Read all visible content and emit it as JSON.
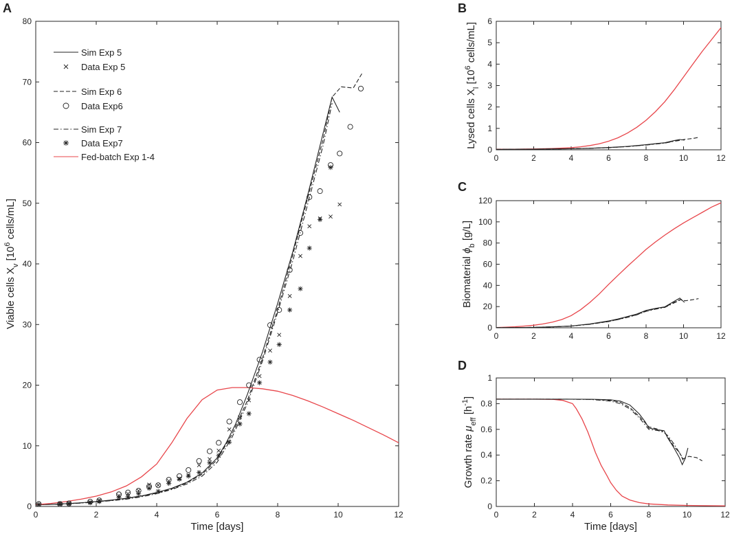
{
  "colors": {
    "black": "#222222",
    "red": "#e8454a",
    "frame": "#262626"
  },
  "chart_data": [
    {
      "panel": "A",
      "type": "line",
      "xlabel": "Time [days]",
      "ylabel_parts": [
        "Viable cells X",
        "v",
        " [10",
        "6",
        " cells/mL]"
      ],
      "xlim": [
        0,
        12
      ],
      "ylim": [
        0,
        80
      ],
      "xticks": [
        0,
        2,
        4,
        6,
        8,
        10,
        12
      ],
      "yticks": [
        0,
        10,
        20,
        30,
        40,
        50,
        60,
        70,
        80
      ],
      "legend": [
        "Sim Exp 5",
        "Data Exp 5",
        "Sim Exp 6",
        "Data Exp6",
        "Sim Exp 7",
        "Data Exp7",
        "Fed-batch Exp 1-4"
      ],
      "series": [
        {
          "name": "Sim Exp 5",
          "style": "solid",
          "color": "#222222",
          "x": [
            0,
            0.5,
            1,
            1.5,
            2,
            2.5,
            3,
            3.5,
            4,
            4.5,
            5,
            5.5,
            6,
            6.3,
            6.6,
            7,
            7.5,
            8,
            8.5,
            9,
            9.5,
            9.8,
            10.05
          ],
          "y": [
            0.3,
            0.35,
            0.45,
            0.6,
            0.8,
            1.05,
            1.35,
            1.75,
            2.3,
            3.0,
            4.0,
            5.5,
            8.0,
            10.5,
            13.5,
            18.5,
            25.5,
            33.5,
            42,
            51.5,
            61.5,
            67.5,
            65
          ]
        },
        {
          "name": "Sim Exp 6",
          "style": "dashed",
          "color": "#222222",
          "x": [
            0,
            0.5,
            1,
            1.5,
            2,
            2.5,
            3,
            3.5,
            4,
            4.5,
            5,
            5.5,
            6,
            6.5,
            7,
            7.5,
            8,
            8.5,
            9,
            9.5,
            9.8,
            10.1,
            10.5,
            10.8
          ],
          "y": [
            0.3,
            0.35,
            0.45,
            0.6,
            0.8,
            1.0,
            1.3,
            1.7,
            2.2,
            2.9,
            3.9,
            5.3,
            7.7,
            12,
            17.5,
            24.5,
            32.5,
            41.5,
            51,
            60.5,
            67.5,
            69.2,
            69.0,
            71.5
          ]
        },
        {
          "name": "Sim Exp 7",
          "style": "dashdot",
          "color": "#222222",
          "x": [
            0,
            0.5,
            1,
            1.5,
            2,
            2.5,
            3,
            3.5,
            4,
            4.5,
            5,
            5.5,
            6,
            6.5,
            7,
            7.5,
            8,
            8.5,
            9,
            9.5,
            9.8
          ],
          "y": [
            0.3,
            0.33,
            0.42,
            0.55,
            0.72,
            0.95,
            1.2,
            1.6,
            2.1,
            2.8,
            3.7,
            5.0,
            7.3,
            11.5,
            17,
            24,
            32,
            40.5,
            50,
            59.5,
            66.5
          ]
        },
        {
          "name": "Fed-batch Exp 1-4",
          "style": "solid",
          "color": "#e8454a",
          "x": [
            0,
            0.5,
            1,
            1.5,
            2,
            2.5,
            3,
            3.5,
            4,
            4.5,
            5,
            5.5,
            6,
            6.5,
            7,
            7.5,
            8,
            8.5,
            9,
            9.5,
            10,
            10.5,
            11,
            11.5,
            12
          ],
          "y": [
            0.3,
            0.5,
            0.8,
            1.2,
            1.7,
            2.4,
            3.4,
            4.9,
            7.0,
            10.5,
            14.5,
            17.6,
            19.2,
            19.6,
            19.6,
            19.4,
            19.0,
            18.3,
            17.4,
            16.4,
            15.3,
            14.2,
            13.0,
            11.8,
            10.5
          ]
        }
      ],
      "points": [
        {
          "name": "Data Exp 5",
          "marker": "x",
          "x": [
            0.1,
            0.8,
            1.1,
            1.8,
            2.1,
            2.75,
            3.05,
            3.4,
            3.75,
            4.05,
            4.4,
            4.75,
            5.05,
            5.4,
            5.75,
            6.05,
            6.4,
            6.75,
            7.05,
            7.4,
            7.75,
            8.05,
            8.4,
            8.75,
            9.05,
            9.4,
            9.75,
            10.05
          ],
          "y": [
            0.3,
            0.5,
            0.5,
            0.7,
            1.0,
            1.8,
            2.1,
            2.6,
            3.6,
            3.5,
            4.2,
            4.6,
            5.2,
            6.8,
            7.8,
            9.2,
            12.7,
            14.7,
            17.5,
            21.5,
            25.7,
            28.3,
            34.7,
            41.3,
            46.2,
            47.5,
            47.8,
            49.8
          ]
        },
        {
          "name": "Data Exp6",
          "marker": "circle",
          "x": [
            0.1,
            0.8,
            1.1,
            1.8,
            2.1,
            2.75,
            3.05,
            3.4,
            3.75,
            4.05,
            4.4,
            4.75,
            5.05,
            5.4,
            5.75,
            6.05,
            6.4,
            6.75,
            7.05,
            7.4,
            7.75,
            8.05,
            8.4,
            8.75,
            9.05,
            9.4,
            9.75,
            10.05,
            10.4,
            10.75
          ],
          "y": [
            0.4,
            0.4,
            0.5,
            0.8,
            1.0,
            2.0,
            2.3,
            2.6,
            3.3,
            3.5,
            4.4,
            5.0,
            6.0,
            7.5,
            9.1,
            10.5,
            14.0,
            17.2,
            20.0,
            24.2,
            29.9,
            32.4,
            39.0,
            45.1,
            51.0,
            52.0,
            56.3,
            58.2,
            62.6,
            68.9
          ]
        },
        {
          "name": "Data Exp7",
          "marker": "star",
          "x": [
            0.1,
            0.8,
            1.1,
            1.8,
            2.1,
            2.75,
            3.05,
            3.4,
            3.75,
            4.05,
            4.4,
            4.75,
            5.05,
            5.4,
            5.75,
            6.05,
            6.4,
            6.75,
            7.05,
            7.4,
            7.75,
            8.05,
            8.4,
            8.75,
            9.05,
            9.4,
            9.75
          ],
          "y": [
            0.3,
            0.3,
            0.4,
            0.6,
            0.8,
            1.5,
            1.6,
            2.1,
            3.0,
            2.5,
            3.8,
            4.5,
            5.0,
            5.6,
            7.2,
            8.4,
            10.6,
            13.6,
            15.3,
            20.4,
            23.8,
            26.7,
            32.4,
            35.9,
            42.6,
            47.3,
            55.9
          ]
        }
      ]
    },
    {
      "panel": "B",
      "type": "line",
      "xlabel": "",
      "ylabel_parts": [
        "Lysed cells X",
        "l",
        " [10",
        "6",
        " cells/mL]"
      ],
      "xlim": [
        0,
        12
      ],
      "ylim": [
        0,
        6
      ],
      "xticks": [
        0,
        2,
        4,
        6,
        8,
        10,
        12
      ],
      "yticks": [
        0,
        1,
        2,
        3,
        4,
        5,
        6
      ],
      "series": [
        {
          "name": "Fed-batch",
          "style": "solid",
          "color": "#e8454a",
          "x": [
            0,
            1,
            2,
            3,
            4,
            4.5,
            5,
            5.5,
            6,
            6.5,
            7,
            7.5,
            8,
            8.5,
            9,
            9.5,
            10,
            10.5,
            11,
            11.5,
            12
          ],
          "y": [
            0.03,
            0.03,
            0.04,
            0.06,
            0.1,
            0.14,
            0.2,
            0.28,
            0.4,
            0.56,
            0.78,
            1.05,
            1.38,
            1.78,
            2.25,
            2.8,
            3.4,
            4.0,
            4.6,
            5.15,
            5.7
          ]
        },
        {
          "name": "Sim Exp 5",
          "style": "solid",
          "color": "#222222",
          "x": [
            0,
            2,
            4,
            5,
            6,
            7,
            8,
            8.5,
            9,
            9.5,
            9.8,
            10.05
          ],
          "y": [
            0.02,
            0.03,
            0.05,
            0.07,
            0.11,
            0.16,
            0.24,
            0.29,
            0.33,
            0.43,
            0.48,
            0.45
          ]
        },
        {
          "name": "Sim Exp 6",
          "style": "dashed",
          "color": "#222222",
          "x": [
            0,
            2,
            4,
            5,
            6,
            7,
            8,
            8.5,
            9,
            9.5,
            9.8,
            10.1,
            10.5,
            10.8
          ],
          "y": [
            0.02,
            0.03,
            0.05,
            0.07,
            0.1,
            0.15,
            0.23,
            0.28,
            0.32,
            0.41,
            0.45,
            0.49,
            0.53,
            0.58
          ]
        },
        {
          "name": "Sim Exp 7",
          "style": "dashdot",
          "color": "#222222",
          "x": [
            0,
            2,
            4,
            5,
            6,
            7,
            8,
            8.5,
            9,
            9.5,
            9.8
          ],
          "y": [
            0.02,
            0.03,
            0.05,
            0.07,
            0.1,
            0.15,
            0.22,
            0.27,
            0.31,
            0.4,
            0.44
          ]
        }
      ]
    },
    {
      "panel": "C",
      "type": "line",
      "xlabel": "",
      "ylabel_parts": [
        "Biomaterial ",
        "ϕ",
        "b",
        " [g/L]"
      ],
      "xlim": [
        0,
        12
      ],
      "ylim": [
        0,
        120
      ],
      "xticks": [
        0,
        2,
        4,
        6,
        8,
        10,
        12
      ],
      "yticks": [
        0,
        20,
        40,
        60,
        80,
        100,
        120
      ],
      "series": [
        {
          "name": "Fed-batch",
          "style": "solid",
          "color": "#e8454a",
          "x": [
            0,
            0.5,
            1,
            1.5,
            2,
            2.5,
            3,
            3.5,
            4,
            4.5,
            5,
            5.5,
            6,
            6.5,
            7,
            7.5,
            8,
            8.5,
            9,
            9.5,
            10,
            10.5,
            11,
            11.5,
            12
          ],
          "y": [
            0.2,
            0.5,
            1.0,
            1.6,
            2.4,
            3.6,
            5.3,
            7.8,
            11.5,
            17,
            24,
            32,
            41,
            49.5,
            58,
            66,
            74,
            81,
            87.5,
            93.5,
            99,
            104,
            109,
            114,
            118
          ]
        },
        {
          "name": "Sim Exp 5",
          "style": "solid",
          "color": "#222222",
          "x": [
            0,
            1,
            2,
            3,
            4,
            5,
            6,
            6.5,
            7,
            7.5,
            8,
            8.5,
            9,
            9.5,
            9.8,
            10.05
          ],
          "y": [
            0.1,
            0.2,
            0.4,
            0.9,
            1.7,
            3.6,
            6.4,
            8.3,
            10.6,
            13.0,
            16.5,
            18.3,
            19.8,
            25,
            28,
            24
          ]
        },
        {
          "name": "Sim Exp 6",
          "style": "dashed",
          "color": "#222222",
          "x": [
            0,
            1,
            2,
            3,
            4,
            5,
            6,
            6.5,
            7,
            7.5,
            8,
            8.5,
            9,
            9.5,
            9.8,
            10.1,
            10.5,
            10.8
          ],
          "y": [
            0.1,
            0.2,
            0.4,
            0.9,
            1.6,
            3.4,
            6.0,
            7.9,
            10.0,
            12.3,
            15.8,
            17.9,
            19.5,
            24,
            26.5,
            25.5,
            26.5,
            27.5
          ]
        },
        {
          "name": "Sim Exp 7",
          "style": "dashdot",
          "color": "#222222",
          "x": [
            0,
            1,
            2,
            3,
            4,
            5,
            6,
            6.5,
            7,
            7.5,
            8,
            8.5,
            9,
            9.5,
            9.8
          ],
          "y": [
            0.1,
            0.2,
            0.4,
            0.8,
            1.6,
            3.3,
            5.9,
            7.7,
            9.8,
            12.2,
            15.5,
            17.6,
            19.2,
            23.5,
            26
          ]
        }
      ]
    },
    {
      "panel": "D",
      "type": "line",
      "xlabel": "Time [days]",
      "ylabel_parts": [
        "Growth rate ",
        "μ",
        "eff",
        " [h",
        "-1",
        "]"
      ],
      "xlim": [
        0,
        12
      ],
      "ylim": [
        0,
        1
      ],
      "xticks": [
        0,
        2,
        4,
        6,
        8,
        10,
        12
      ],
      "yticks": [
        0,
        0.2,
        0.4,
        0.6,
        0.8,
        1
      ],
      "ytick_labels": [
        "0",
        "0.2",
        "0.4",
        "0.6",
        "0.8",
        "1"
      ],
      "series": [
        {
          "name": "Fed-batch",
          "style": "solid",
          "color": "#e8454a",
          "x": [
            0,
            1,
            2,
            3,
            3.5,
            4,
            4.2,
            4.5,
            4.8,
            5,
            5.2,
            5.5,
            5.8,
            6,
            6.3,
            6.6,
            7,
            7.5,
            8,
            9,
            10,
            11,
            12
          ],
          "y": [
            0.835,
            0.835,
            0.835,
            0.833,
            0.825,
            0.8,
            0.76,
            0.68,
            0.58,
            0.5,
            0.42,
            0.32,
            0.24,
            0.185,
            0.125,
            0.08,
            0.05,
            0.03,
            0.02,
            0.012,
            0.008,
            0.006,
            0.005
          ]
        },
        {
          "name": "Sim Exp 5",
          "style": "solid",
          "color": "#222222",
          "x": [
            0,
            2,
            4,
            5,
            6,
            6.5,
            7,
            7.5,
            7.8,
            8,
            8.5,
            8.8,
            9,
            9.3,
            9.6,
            9.75,
            9.9,
            10.05
          ],
          "y": [
            0.835,
            0.835,
            0.835,
            0.834,
            0.83,
            0.82,
            0.79,
            0.72,
            0.66,
            0.61,
            0.595,
            0.59,
            0.53,
            0.46,
            0.38,
            0.325,
            0.37,
            0.455
          ]
        },
        {
          "name": "Sim Exp 6",
          "style": "dashed",
          "color": "#222222",
          "x": [
            0,
            2,
            4,
            5,
            6,
            6.5,
            7,
            7.5,
            8,
            8.5,
            8.8,
            9,
            9.3,
            9.6,
            9.8,
            10.1,
            10.5,
            10.8
          ],
          "y": [
            0.835,
            0.835,
            0.834,
            0.833,
            0.825,
            0.81,
            0.77,
            0.7,
            0.62,
            0.6,
            0.58,
            0.54,
            0.47,
            0.42,
            0.37,
            0.39,
            0.38,
            0.355
          ]
        },
        {
          "name": "Sim Exp 7",
          "style": "dashdot",
          "color": "#222222",
          "x": [
            0,
            2,
            4,
            5,
            6,
            6.5,
            7,
            7.5,
            8,
            8.5,
            8.8,
            9,
            9.3,
            9.6,
            9.8
          ],
          "y": [
            0.835,
            0.835,
            0.834,
            0.832,
            0.82,
            0.8,
            0.76,
            0.69,
            0.6,
            0.59,
            0.575,
            0.55,
            0.49,
            0.42,
            0.36
          ]
        }
      ]
    }
  ]
}
